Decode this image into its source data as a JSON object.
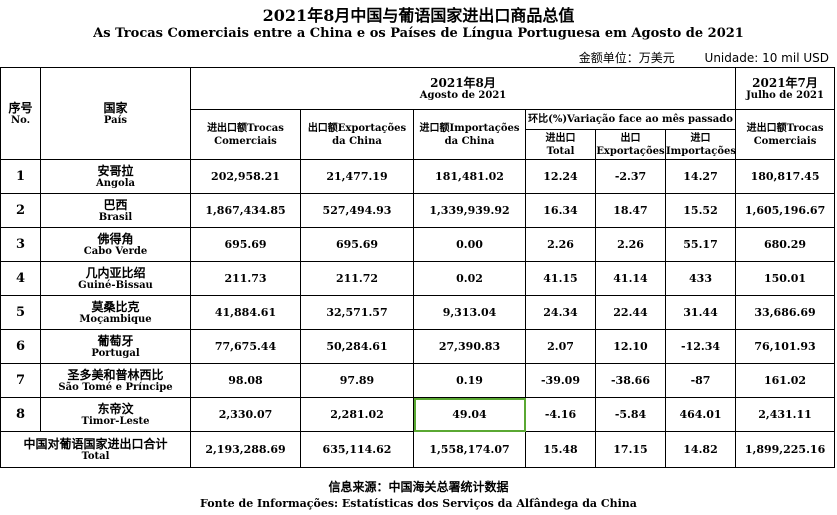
{
  "title": "2021年8月中国与葡语国家进出口商品总值",
  "subtitle": "As Trocas Comerciais entre a China e os Países de Língua Portuguesa em Agosto de 2021",
  "unit_cn": "金额单位：万美元",
  "unit_pt": "Unidade: 10 mil USD",
  "headers": {
    "no_cn": "序号",
    "no_pt": "No.",
    "country_cn": "国家",
    "country_pt": "País",
    "aug_cn": "2021年8月",
    "aug_pt": "Agosto de 2021",
    "jul_cn": "2021年7月",
    "jul_pt": "Julho de 2021",
    "trade_total": "进出口额Trocas Comerciais",
    "exports": "出口额Exportações da China",
    "imports": "进口额Importações da China",
    "variation": "环比(%)Variação face ao mês passado",
    "var_total_cn": "进出口",
    "var_total_pt": "Total",
    "var_exp_cn": "出口",
    "var_exp_pt": "Exportações",
    "var_imp_cn": "进口",
    "var_imp_pt": "Importações",
    "jul_trade": "进出口额Trocas Comerciais"
  },
  "rows": [
    {
      "no": "1",
      "cn": "安哥拉",
      "pt": "Angola",
      "total": "202,958.21",
      "exp": "21,477.19",
      "imp": "181,481.02",
      "vt": "12.24",
      "ve": "-2.37",
      "vi": "14.27",
      "jul": "180,817.45"
    },
    {
      "no": "2",
      "cn": "巴西",
      "pt": "Brasil",
      "total": "1,867,434.85",
      "exp": "527,494.93",
      "imp": "1,339,939.92",
      "vt": "16.34",
      "ve": "18.47",
      "vi": "15.52",
      "jul": "1,605,196.67"
    },
    {
      "no": "3",
      "cn": "佛得角",
      "pt": "Cabo Verde",
      "total": "695.69",
      "exp": "695.69",
      "imp": "0.00",
      "vt": "2.26",
      "ve": "2.26",
      "vi": "55.17",
      "jul": "680.29"
    },
    {
      "no": "4",
      "cn": "几内亚比绍",
      "pt": "Guiné-Bissau",
      "total": "211.73",
      "exp": "211.72",
      "imp": "0.02",
      "vt": "41.15",
      "ve": "41.14",
      "vi": "433",
      "jul": "150.01"
    },
    {
      "no": "5",
      "cn": "莫桑比克",
      "pt": "Moçambique",
      "total": "41,884.61",
      "exp": "32,571.57",
      "imp": "9,313.04",
      "vt": "24.34",
      "ve": "22.44",
      "vi": "31.44",
      "jul": "33,686.69"
    },
    {
      "no": "6",
      "cn": "葡萄牙",
      "pt": "Portugal",
      "total": "77,675.44",
      "exp": "50,284.61",
      "imp": "27,390.83",
      "vt": "2.07",
      "ve": "12.10",
      "vi": "-12.34",
      "jul": "76,101.93"
    },
    {
      "no": "7",
      "cn": "圣多美和普林西比",
      "pt": "São Tomé e Príncipe",
      "total": "98.08",
      "exp": "97.89",
      "imp": "0.19",
      "vt": "-39.09",
      "ve": "-38.66",
      "vi": "-87",
      "jul": "161.02"
    },
    {
      "no": "8",
      "cn": "东帝汶",
      "pt": "Timor-Leste",
      "total": "2,330.07",
      "exp": "2,281.02",
      "imp": "49.04",
      "vt": "-4.16",
      "ve": "-5.84",
      "vi": "464.01",
      "jul": "2,431.11"
    }
  ],
  "total_row": {
    "cn": "中国对葡语国家进出口合计",
    "pt": "Total",
    "total": "2,193,288.69",
    "exp": "635,114.62",
    "imp": "1,558,174.07",
    "vt": "15.48",
    "ve": "17.15",
    "vi": "14.82",
    "jul": "1,899,225.16"
  },
  "source_cn": "信息来源：中国海关总署统计数据",
  "source_pt": "Fonte de Informações: Estatísticas dos Serviços da Alfândega da China"
}
